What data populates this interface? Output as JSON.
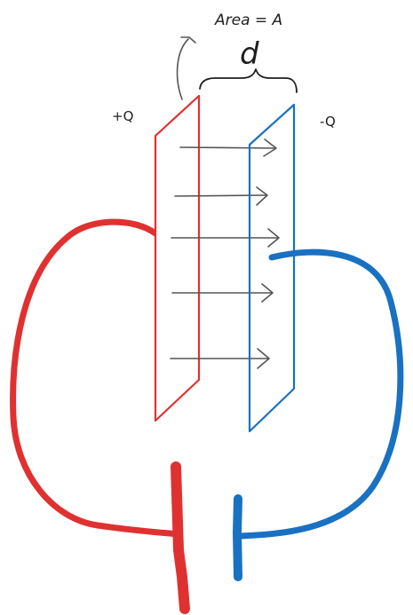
{
  "labels": {
    "area": "Area = A",
    "distance": "d",
    "plus_charge": "+Q",
    "minus_charge": "-Q"
  },
  "colors": {
    "positive": "#e03131",
    "negative": "#1971c2",
    "ink": "#555555",
    "text": "#1e1e1e"
  },
  "field_arrow_count": 5
}
